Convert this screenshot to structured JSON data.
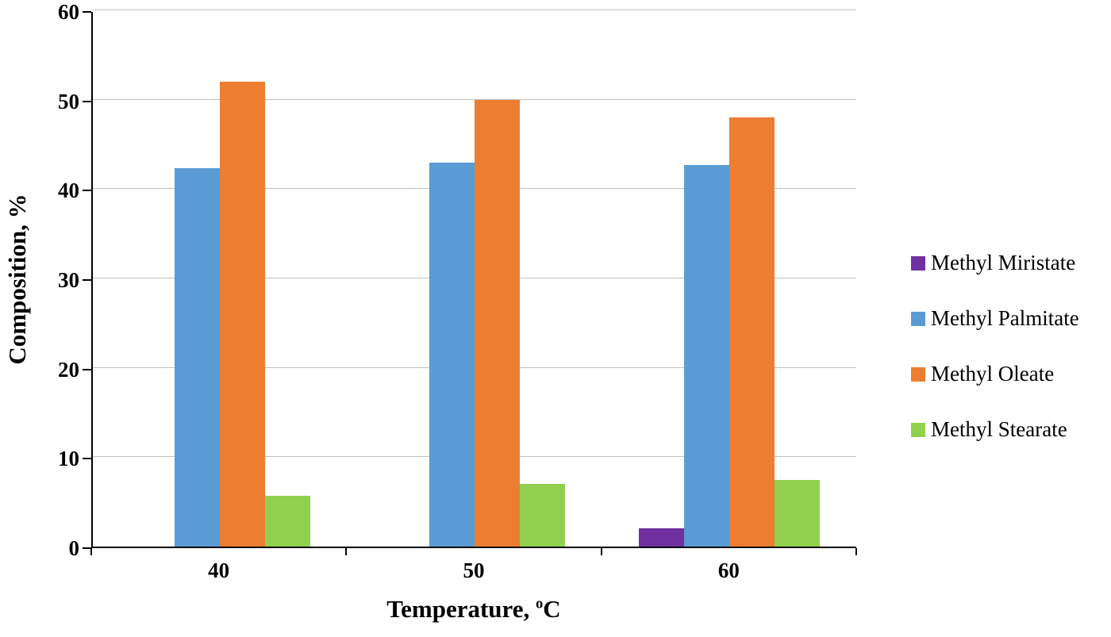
{
  "chart_data": {
    "type": "bar",
    "categories": [
      "40",
      "50",
      "60"
    ],
    "series": [
      {
        "name": "Methyl Miristate",
        "color": "#7030A0",
        "values": [
          0,
          0,
          2
        ]
      },
      {
        "name": "Methyl Palmitate",
        "color": "#5B9BD5",
        "values": [
          42.3,
          43,
          42.7
        ]
      },
      {
        "name": "Methyl Oleate",
        "color": "#ED7D31",
        "values": [
          52,
          50,
          48
        ]
      },
      {
        "name": "Methyl Stearate",
        "color": "#92D050",
        "values": [
          5.7,
          7,
          7.5
        ]
      }
    ],
    "title": "",
    "xlabel": "Temperature, °C",
    "ylabel": "Composition, %",
    "ylim": [
      0,
      60
    ],
    "yticks": [
      0,
      10,
      20,
      30,
      40,
      50,
      60
    ],
    "grid": true,
    "legend_position": "right"
  },
  "labels": {
    "x_title_main": "Temperature, ",
    "x_title_sup": "o",
    "x_title_end": "C"
  },
  "colors": {
    "gridline": "#BFBFBF",
    "axis": "#000000"
  }
}
